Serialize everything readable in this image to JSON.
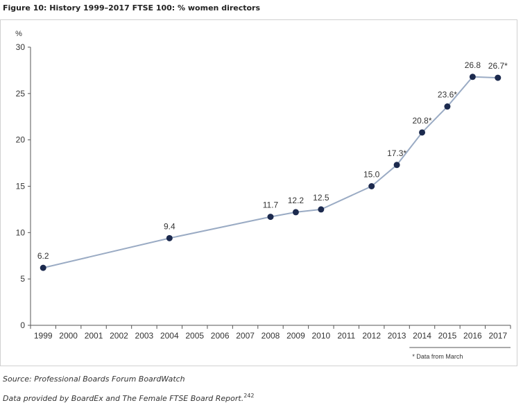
{
  "figure_title": "Figure 10: History 1999–2017 FTSE 100: % women directors",
  "chart_data": {
    "type": "line",
    "title": "Figure 10: History 1999–2017 FTSE 100: % women directors",
    "ylabel": "%",
    "xlabel": "",
    "ylim": [
      0,
      30
    ],
    "yticks": [
      0,
      5,
      10,
      15,
      20,
      25,
      30
    ],
    "categories": [
      "1999",
      "2000",
      "2001",
      "2002",
      "2003",
      "2004",
      "2005",
      "2006",
      "2007",
      "2008",
      "2009",
      "2010",
      "2011",
      "2012",
      "2013",
      "2014",
      "2015",
      "2016",
      "2017"
    ],
    "series": [
      {
        "name": "% women directors",
        "color": "#9aabc4",
        "marker_color": "#1c2a4e",
        "points": [
          {
            "x": "1999",
            "y": 6.2,
            "label": "6.2"
          },
          {
            "x": "2004",
            "y": 9.4,
            "label": "9.4"
          },
          {
            "x": "2008",
            "y": 11.7,
            "label": "11.7"
          },
          {
            "x": "2009",
            "y": 12.2,
            "label": "12.2"
          },
          {
            "x": "2010",
            "y": 12.5,
            "label": "12.5"
          },
          {
            "x": "2012",
            "y": 15.0,
            "label": "15.0"
          },
          {
            "x": "2013",
            "y": 17.3,
            "label": "17.3*"
          },
          {
            "x": "2014",
            "y": 20.8,
            "label": "20.8*"
          },
          {
            "x": "2015",
            "y": 23.6,
            "label": "23.6*"
          },
          {
            "x": "2016",
            "y": 26.8,
            "label": "26.8"
          },
          {
            "x": "2017",
            "y": 26.7,
            "label": "26.7*"
          }
        ]
      }
    ],
    "note": "* Data from March",
    "grid": false
  },
  "footer": {
    "source": "Source: Professional Boards Forum BoardWatch",
    "provided": "Data provided by BoardEx and The Female FTSE Board Report.",
    "footnote_ref": "242"
  }
}
